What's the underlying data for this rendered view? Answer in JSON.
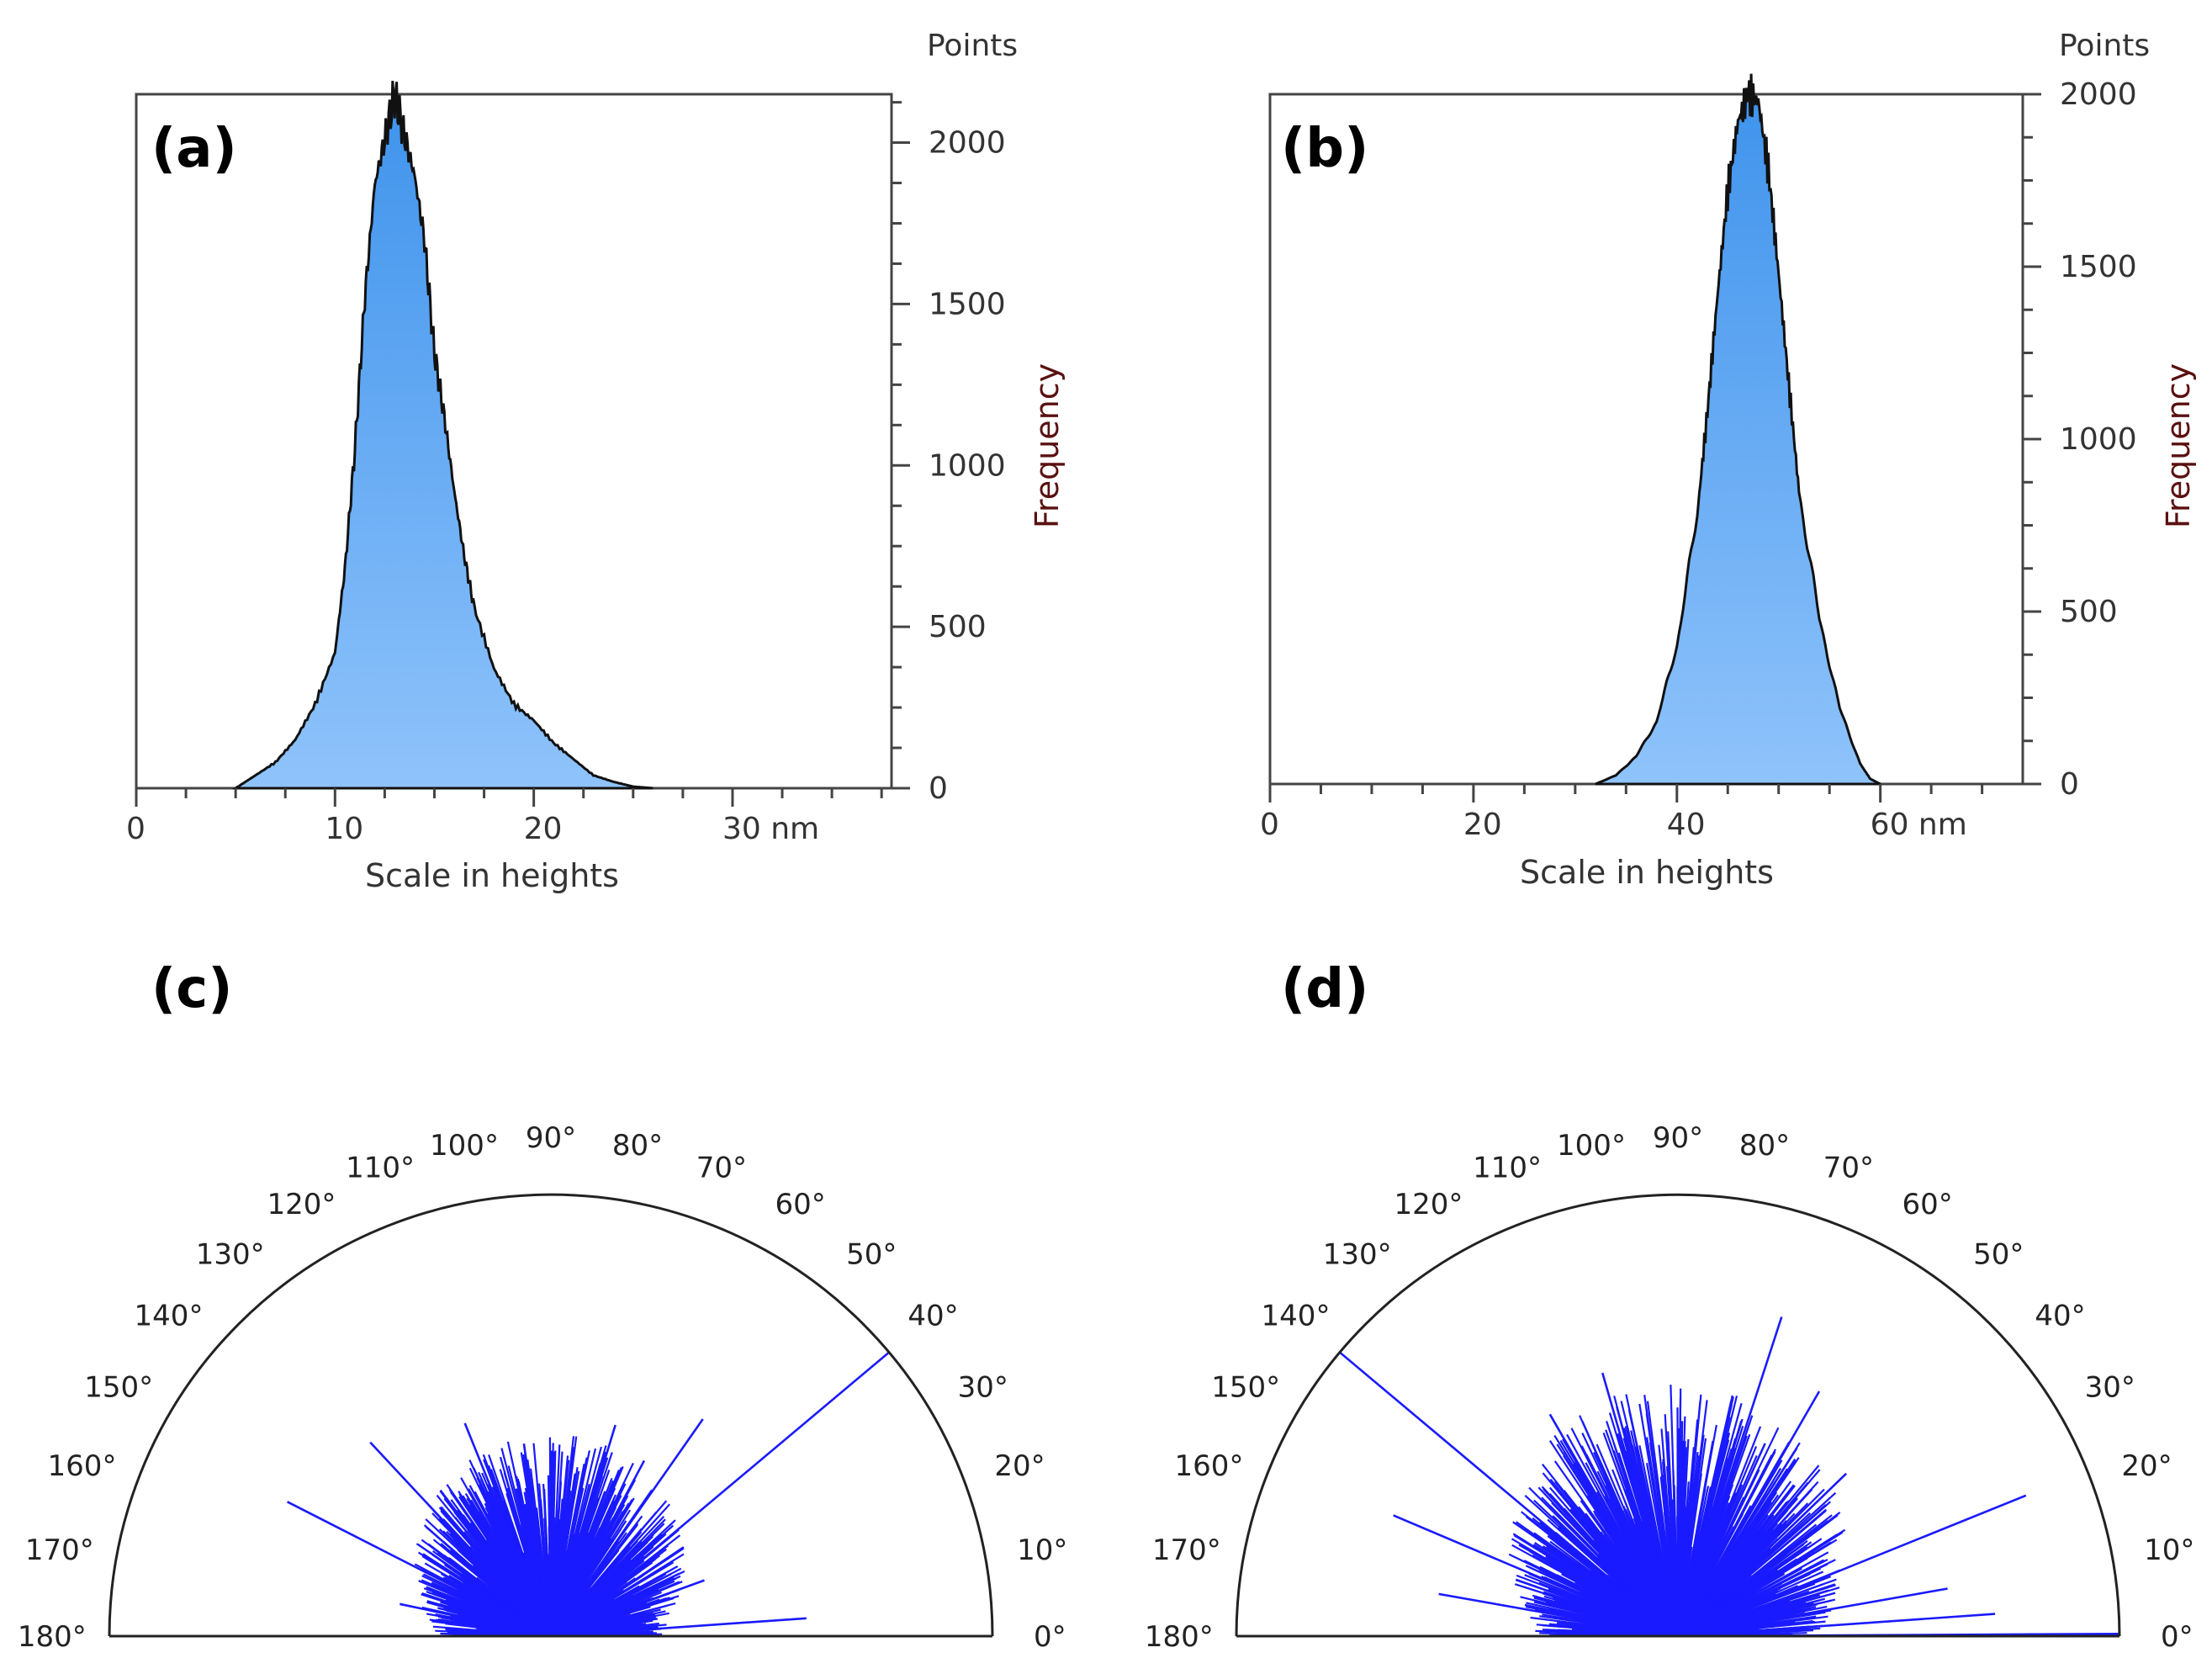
{
  "colors": {
    "hist_top": "#3d92ec",
    "hist_bottom": "#8fc3fb",
    "hist_outline": "#111111",
    "axis": "#444444",
    "polar_lines": "#1a1aff",
    "frequency_label": "#5a1010"
  },
  "chart_data": [
    {
      "id": "a",
      "type": "area",
      "panel_label": "(a)",
      "xlabel": "Scale in heights",
      "ylabel": "Frequency",
      "ylabel_top": "Points",
      "x_unit": "nm",
      "xlim": [
        0,
        38
      ],
      "ylim": [
        0,
        2150
      ],
      "x_ticks": [
        "0",
        "10",
        "20",
        "30 nm"
      ],
      "y_ticks": [
        "0",
        "500",
        "1000",
        "1500",
        "2000"
      ],
      "x": [
        5,
        6,
        7,
        8,
        9,
        10,
        10.5,
        11,
        11.5,
        12,
        12.5,
        13,
        13.5,
        14,
        14.5,
        15,
        15.5,
        16,
        16.5,
        17,
        18,
        19,
        20,
        21,
        22,
        23,
        24,
        25,
        26
      ],
      "values": [
        0,
        40,
        80,
        150,
        260,
        420,
        680,
        1050,
        1520,
        1870,
        2010,
        2150,
        2020,
        1900,
        1700,
        1350,
        1150,
        920,
        720,
        560,
        370,
        260,
        210,
        140,
        90,
        40,
        20,
        5,
        0
      ]
    },
    {
      "id": "b",
      "type": "area",
      "panel_label": "(b)",
      "xlabel": "Scale in heights",
      "ylabel": "Frequency",
      "ylabel_top": "Points",
      "x_unit": "nm",
      "xlim": [
        0,
        74
      ],
      "ylim": [
        0,
        2000
      ],
      "x_ticks": [
        "0",
        "20",
        "40",
        "60 nm"
      ],
      "y_ticks": [
        "0",
        "500",
        "1000",
        "1500",
        "2000"
      ],
      "x": [
        32,
        34,
        36,
        38,
        40,
        42,
        43,
        44,
        45,
        46,
        47,
        48,
        49,
        50,
        51,
        52,
        54,
        56,
        58,
        59,
        60
      ],
      "values": [
        0,
        25,
        80,
        180,
        400,
        780,
        1080,
        1420,
        1720,
        1920,
        2000,
        1980,
        1780,
        1480,
        1160,
        850,
        480,
        220,
        60,
        15,
        0
      ]
    },
    {
      "id": "c",
      "type": "polar",
      "panel_label": "(c)",
      "angle_ticks": [
        "0°",
        "10°",
        "20°",
        "30°",
        "40°",
        "50°",
        "60°",
        "70°",
        "80°",
        "90°",
        "100°",
        "110°",
        "120°",
        "130°",
        "140°",
        "150°",
        "160°",
        "170°",
        "180°"
      ],
      "bulk_radius": 0.42,
      "spikes": [
        {
          "angle": 40,
          "r": 1.0
        },
        {
          "angle": 55,
          "r": 0.6
        },
        {
          "angle": 62,
          "r": 0.45
        },
        {
          "angle": 73,
          "r": 0.5
        },
        {
          "angle": 98,
          "r": 0.44
        },
        {
          "angle": 112,
          "r": 0.52
        },
        {
          "angle": 133,
          "r": 0.6
        },
        {
          "angle": 153,
          "r": 0.67
        },
        {
          "angle": 168,
          "r": 0.35
        },
        {
          "angle": 4,
          "r": 0.58
        },
        {
          "angle": 20,
          "r": 0.37
        }
      ]
    },
    {
      "id": "d",
      "type": "polar",
      "panel_label": "(d)",
      "angle_ticks": [
        "0°",
        "10°",
        "20°",
        "30°",
        "40°",
        "50°",
        "60°",
        "70°",
        "80°",
        "90°",
        "100°",
        "110°",
        "120°",
        "130°",
        "140°",
        "150°",
        "160°",
        "170°",
        "180°"
      ],
      "bulk_radius": 0.52,
      "spikes": [
        {
          "angle": 140,
          "r": 1.0
        },
        {
          "angle": 157,
          "r": 0.7
        },
        {
          "angle": 120,
          "r": 0.58
        },
        {
          "angle": 106,
          "r": 0.62
        },
        {
          "angle": 72,
          "r": 0.76
        },
        {
          "angle": 60,
          "r": 0.64
        },
        {
          "angle": 44,
          "r": 0.53
        },
        {
          "angle": 22,
          "r": 0.85
        },
        {
          "angle": 10,
          "r": 0.62
        },
        {
          "angle": 4,
          "r": 0.72
        },
        {
          "angle": 170,
          "r": 0.55
        },
        {
          "angle": 0.3,
          "r": 1.0
        }
      ]
    }
  ]
}
